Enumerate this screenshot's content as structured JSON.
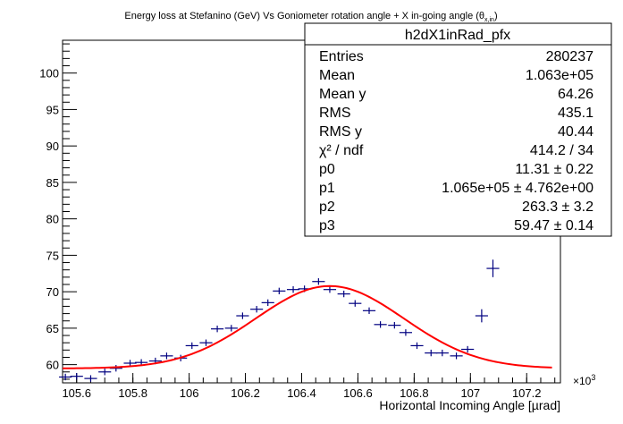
{
  "chart_data": {
    "type": "scatter",
    "title_main": "Energy loss at Stefanino (GeV) Vs Goniometer rotation angle + X in-going angle (θ",
    "title_sub": "x,in",
    "title_close": ")",
    "xlabel": "Horizontal Incoming Angle [µrad]",
    "ylabel": "",
    "x_exponent_base": "×10",
    "x_exponent_power": "3",
    "xlim": [
      105.55,
      107.32
    ],
    "ylim": [
      57.5,
      104.5
    ],
    "x_ticks": [
      {
        "value": 105.6,
        "label": "105.6"
      },
      {
        "value": 105.8,
        "label": "105.8"
      },
      {
        "value": 106.0,
        "label": "106"
      },
      {
        "value": 106.2,
        "label": "106.2"
      },
      {
        "value": 106.4,
        "label": "106.4"
      },
      {
        "value": 106.6,
        "label": "106.6"
      },
      {
        "value": 106.8,
        "label": "106.8"
      },
      {
        "value": 107.0,
        "label": "107"
      },
      {
        "value": 107.2,
        "label": "107.2"
      }
    ],
    "y_ticks": [
      {
        "value": 60,
        "label": "60"
      },
      {
        "value": 65,
        "label": "65"
      },
      {
        "value": 70,
        "label": "70"
      },
      {
        "value": 75,
        "label": "75"
      },
      {
        "value": 80,
        "label": "80"
      },
      {
        "value": 85,
        "label": "85"
      },
      {
        "value": 90,
        "label": "90"
      },
      {
        "value": 95,
        "label": "95"
      },
      {
        "value": 100,
        "label": "100"
      }
    ],
    "points": [
      {
        "x": 105.56,
        "y": 58.3,
        "ey": 0.45
      },
      {
        "x": 105.6,
        "y": 58.4,
        "ey": 0.45
      },
      {
        "x": 105.65,
        "y": 58.1,
        "ey": 0.45
      },
      {
        "x": 105.7,
        "y": 59.0,
        "ey": 0.45
      },
      {
        "x": 105.74,
        "y": 59.5,
        "ey": 0.45
      },
      {
        "x": 105.79,
        "y": 60.2,
        "ey": 0.45
      },
      {
        "x": 105.83,
        "y": 60.3,
        "ey": 0.45
      },
      {
        "x": 105.88,
        "y": 60.5,
        "ey": 0.45
      },
      {
        "x": 105.92,
        "y": 61.2,
        "ey": 0.45
      },
      {
        "x": 105.97,
        "y": 60.9,
        "ey": 0.45
      },
      {
        "x": 106.01,
        "y": 62.6,
        "ey": 0.45
      },
      {
        "x": 106.06,
        "y": 63.0,
        "ey": 0.45
      },
      {
        "x": 106.1,
        "y": 64.9,
        "ey": 0.45
      },
      {
        "x": 106.15,
        "y": 65.0,
        "ey": 0.45
      },
      {
        "x": 106.19,
        "y": 66.7,
        "ey": 0.45
      },
      {
        "x": 106.24,
        "y": 67.6,
        "ey": 0.45
      },
      {
        "x": 106.28,
        "y": 68.5,
        "ey": 0.45
      },
      {
        "x": 106.32,
        "y": 70.1,
        "ey": 0.45
      },
      {
        "x": 106.37,
        "y": 70.3,
        "ey": 0.45
      },
      {
        "x": 106.41,
        "y": 70.4,
        "ey": 0.45
      },
      {
        "x": 106.46,
        "y": 71.4,
        "ey": 0.45
      },
      {
        "x": 106.5,
        "y": 70.3,
        "ey": 0.45
      },
      {
        "x": 106.55,
        "y": 69.7,
        "ey": 0.45
      },
      {
        "x": 106.59,
        "y": 68.4,
        "ey": 0.45
      },
      {
        "x": 106.64,
        "y": 67.4,
        "ey": 0.45
      },
      {
        "x": 106.68,
        "y": 65.5,
        "ey": 0.45
      },
      {
        "x": 106.73,
        "y": 65.4,
        "ey": 0.45
      },
      {
        "x": 106.77,
        "y": 64.4,
        "ey": 0.45
      },
      {
        "x": 106.81,
        "y": 62.6,
        "ey": 0.45
      },
      {
        "x": 106.86,
        "y": 61.6,
        "ey": 0.45
      },
      {
        "x": 106.9,
        "y": 61.6,
        "ey": 0.45
      },
      {
        "x": 106.95,
        "y": 61.2,
        "ey": 0.45
      },
      {
        "x": 106.99,
        "y": 62.1,
        "ey": 0.45
      },
      {
        "x": 107.04,
        "y": 66.7,
        "ey": 0.9
      },
      {
        "x": 107.08,
        "y": 73.2,
        "ey": 1.2
      }
    ],
    "fit": {
      "p0": 11.31,
      "p1": 106.5,
      "p2": 0.2633,
      "p3": 59.47,
      "color": "#ff0000"
    },
    "marker_color": "#000080",
    "stats": {
      "title": "h2dX1inRad_pfx",
      "rows": [
        {
          "label": "Entries",
          "value": "280237"
        },
        {
          "label": "Mean",
          "value": "1.063e+05"
        },
        {
          "label": "Mean y",
          "value": "64.26"
        },
        {
          "label": "RMS",
          "value": "435.1"
        },
        {
          "label": "RMS y",
          "value": "40.44"
        },
        {
          "label": "χ² / ndf",
          "value": "414.2 / 34"
        },
        {
          "label": "p0",
          "value": "11.31 ± 0.22"
        },
        {
          "label": "p1",
          "value": "1.065e+05 ± 4.762e+00"
        },
        {
          "label": "p2",
          "value": "263.3 ± 3.2"
        },
        {
          "label": "p3",
          "value": "59.47 ± 0.14"
        }
      ]
    }
  }
}
